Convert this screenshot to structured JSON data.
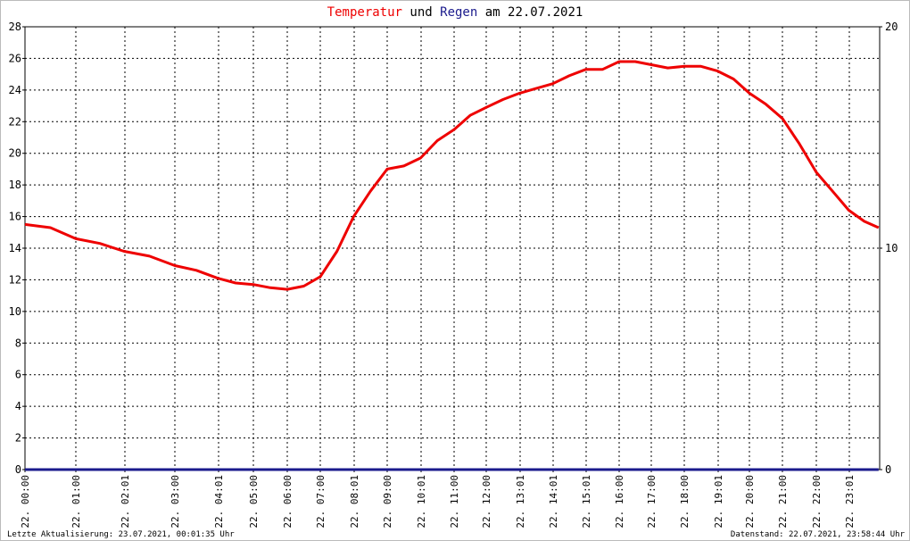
{
  "chart_data": {
    "type": "line",
    "title_joiner": "und",
    "title_suffix": "am 22.07.2021",
    "x": [
      "00:00",
      "00:30",
      "01:00",
      "01:30",
      "02:00",
      "02:30",
      "03:00",
      "03:30",
      "04:00",
      "04:30",
      "05:00",
      "05:30",
      "06:00",
      "06:30",
      "07:00",
      "07:30",
      "08:00",
      "08:30",
      "09:00",
      "09:30",
      "10:00",
      "10:30",
      "11:00",
      "11:30",
      "12:00",
      "12:30",
      "13:00",
      "13:30",
      "14:00",
      "14:30",
      "15:00",
      "15:30",
      "16:00",
      "16:30",
      "17:00",
      "17:30",
      "18:00",
      "18:30",
      "19:00",
      "19:30",
      "20:00",
      "20:30",
      "21:00",
      "21:30",
      "22:00",
      "22:30",
      "23:00",
      "23:30",
      "23:58"
    ],
    "series": [
      {
        "name": "Temperatur",
        "color": "#ee0000",
        "values": [
          15.5,
          15.3,
          14.6,
          14.3,
          13.8,
          13.5,
          12.9,
          12.6,
          12.1,
          11.8,
          11.7,
          11.5,
          11.4,
          11.6,
          12.2,
          13.8,
          16.0,
          17.6,
          19.0,
          19.2,
          19.7,
          20.8,
          21.5,
          22.4,
          22.9,
          23.4,
          23.8,
          24.1,
          24.4,
          24.9,
          25.3,
          25.3,
          25.8,
          25.8,
          25.6,
          25.4,
          25.5,
          25.5,
          25.2,
          24.7,
          23.8,
          23.1,
          22.2,
          20.6,
          18.8,
          17.6,
          16.4,
          15.7,
          15.3
        ]
      },
      {
        "name": "Regen",
        "color": "#1a1a8c",
        "axis": "y2",
        "values": [
          0,
          0,
          0,
          0,
          0,
          0,
          0,
          0,
          0,
          0,
          0,
          0,
          0,
          0,
          0,
          0,
          0,
          0,
          0,
          0,
          0,
          0,
          0,
          0,
          0,
          0,
          0,
          0,
          0,
          0,
          0,
          0,
          0,
          0,
          0,
          0,
          0,
          0,
          0,
          0,
          0,
          0,
          0,
          0,
          0,
          0,
          0,
          0,
          0
        ]
      }
    ],
    "ylim": [
      0,
      28
    ],
    "yticks": [
      0,
      2,
      4,
      6,
      8,
      10,
      12,
      14,
      16,
      18,
      20,
      22,
      24,
      26,
      28
    ],
    "y2lim": [
      0,
      20
    ],
    "y2ticks": [
      0,
      10,
      20
    ],
    "xticks": [
      {
        "value": "00:00",
        "label": "22. 00:00"
      },
      {
        "value": "01:00",
        "label": "22. 01:00"
      },
      {
        "value": "02:01",
        "label": "22. 02:01"
      },
      {
        "value": "03:00",
        "label": "22. 03:00"
      },
      {
        "value": "04:01",
        "label": "22. 04:01"
      },
      {
        "value": "05:00",
        "label": "22. 05:00"
      },
      {
        "value": "06:00",
        "label": "22. 06:00"
      },
      {
        "value": "07:00",
        "label": "22. 07:00"
      },
      {
        "value": "08:01",
        "label": "22. 08:01"
      },
      {
        "value": "09:00",
        "label": "22. 09:00"
      },
      {
        "value": "10:01",
        "label": "22. 10:01"
      },
      {
        "value": "11:00",
        "label": "22. 11:00"
      },
      {
        "value": "12:00",
        "label": "22. 12:00"
      },
      {
        "value": "13:01",
        "label": "22. 13:01"
      },
      {
        "value": "14:01",
        "label": "22. 14:01"
      },
      {
        "value": "15:01",
        "label": "22. 15:01"
      },
      {
        "value": "16:00",
        "label": "22. 16:00"
      },
      {
        "value": "17:00",
        "label": "22. 17:00"
      },
      {
        "value": "18:00",
        "label": "22. 18:00"
      },
      {
        "value": "19:01",
        "label": "22. 19:01"
      },
      {
        "value": "20:00",
        "label": "22. 20:00"
      },
      {
        "value": "21:00",
        "label": "22. 21:00"
      },
      {
        "value": "22:00",
        "label": "22. 22:00"
      },
      {
        "value": "23:01",
        "label": "22. 23:01"
      }
    ],
    "grid": true,
    "footer_left": "Letzte Aktualisierung: 23.07.2021, 00:01:35 Uhr",
    "footer_right": "Datenstand: 22.07.2021, 23:58:44 Uhr"
  }
}
